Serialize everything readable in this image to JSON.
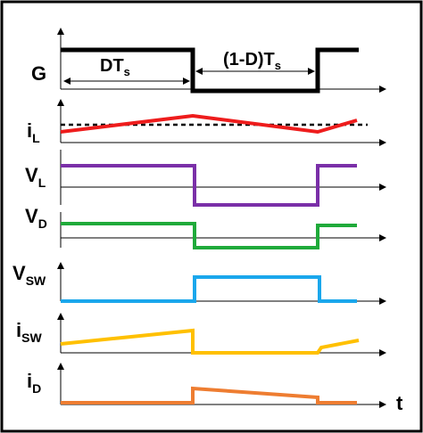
{
  "diagram": {
    "labels": {
      "gate": "G",
      "il_main": "i",
      "il_sub": "L",
      "vl_main": "V",
      "vl_sub": "L",
      "vd_main": "V",
      "vd_sub": "D",
      "vsw_main": "V",
      "vsw_sub": "SW",
      "isw_main": "i",
      "isw_sub": "SW",
      "id_main": "i",
      "id_sub": "D",
      "time": "t"
    },
    "annotations": {
      "on_time_main": "DT",
      "on_time_sub": "s",
      "off_time_main": "(1-D)T",
      "off_time_sub": "s"
    },
    "colors": {
      "gate": "#000000",
      "il": "#ee1c1c",
      "il_avg": "#000000",
      "vl": "#7a2fa8",
      "vd": "#1faa3a",
      "vsw": "#1aa7ec",
      "isw": "#ffc000",
      "id": "#ee7d31",
      "axis": "#000000"
    }
  }
}
